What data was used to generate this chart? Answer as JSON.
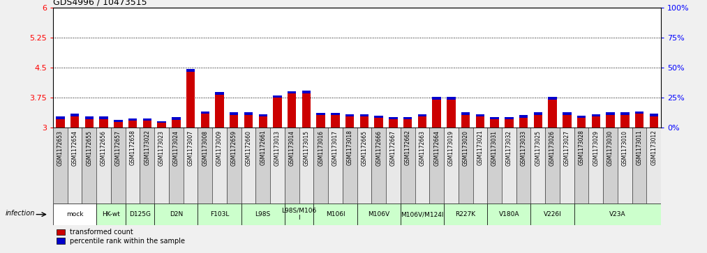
{
  "title": "GDS4996 / 10473515",
  "samples": [
    "GSM1172653",
    "GSM1172654",
    "GSM1172655",
    "GSM1172656",
    "GSM1172657",
    "GSM1172658",
    "GSM1173022",
    "GSM1173023",
    "GSM1173024",
    "GSM1173007",
    "GSM1173008",
    "GSM1173009",
    "GSM1172659",
    "GSM1172660",
    "GSM1172661",
    "GSM1173013",
    "GSM1173014",
    "GSM1173015",
    "GSM1173016",
    "GSM1173017",
    "GSM1173018",
    "GSM1172665",
    "GSM1172666",
    "GSM1172667",
    "GSM1172662",
    "GSM1172663",
    "GSM1172664",
    "GSM1173019",
    "GSM1173020",
    "GSM1173021",
    "GSM1173031",
    "GSM1173032",
    "GSM1173033",
    "GSM1173025",
    "GSM1173026",
    "GSM1173027",
    "GSM1173028",
    "GSM1173029",
    "GSM1173030",
    "GSM1173010",
    "GSM1173011",
    "GSM1173012"
  ],
  "red_values": [
    3.22,
    3.28,
    3.22,
    3.22,
    3.15,
    3.18,
    3.18,
    3.13,
    3.2,
    4.4,
    3.35,
    3.82,
    3.32,
    3.32,
    3.28,
    3.75,
    3.85,
    3.85,
    3.32,
    3.32,
    3.28,
    3.28,
    3.25,
    3.22,
    3.22,
    3.28,
    3.7,
    3.7,
    3.32,
    3.28,
    3.22,
    3.22,
    3.25,
    3.32,
    3.7,
    3.32,
    3.25,
    3.28,
    3.32,
    3.32,
    3.35,
    3.28
  ],
  "blue_values": [
    0.07,
    0.07,
    0.06,
    0.06,
    0.05,
    0.05,
    0.05,
    0.04,
    0.06,
    0.06,
    0.06,
    0.07,
    0.06,
    0.06,
    0.06,
    0.06,
    0.06,
    0.07,
    0.05,
    0.05,
    0.06,
    0.06,
    0.05,
    0.05,
    0.05,
    0.06,
    0.07,
    0.07,
    0.06,
    0.05,
    0.05,
    0.05,
    0.06,
    0.07,
    0.07,
    0.06,
    0.05,
    0.05,
    0.06,
    0.06,
    0.06,
    0.07
  ],
  "groups": [
    {
      "label": "mock",
      "start": 0,
      "end": 2,
      "color": "#ffffff"
    },
    {
      "label": "HK-wt",
      "start": 3,
      "end": 4,
      "color": "#ccffcc"
    },
    {
      "label": "D125G",
      "start": 5,
      "end": 6,
      "color": "#ccffcc"
    },
    {
      "label": "D2N",
      "start": 7,
      "end": 9,
      "color": "#ccffcc"
    },
    {
      "label": "F103L",
      "start": 10,
      "end": 12,
      "color": "#ccffcc"
    },
    {
      "label": "L98S",
      "start": 13,
      "end": 15,
      "color": "#ccffcc"
    },
    {
      "label": "L98S/M106\nI",
      "start": 16,
      "end": 17,
      "color": "#ccffcc"
    },
    {
      "label": "M106I",
      "start": 18,
      "end": 20,
      "color": "#ccffcc"
    },
    {
      "label": "M106V",
      "start": 21,
      "end": 23,
      "color": "#ccffcc"
    },
    {
      "label": "M106V/M124I",
      "start": 24,
      "end": 26,
      "color": "#ccffcc"
    },
    {
      "label": "R227K",
      "start": 27,
      "end": 29,
      "color": "#ccffcc"
    },
    {
      "label": "V180A",
      "start": 30,
      "end": 32,
      "color": "#ccffcc"
    },
    {
      "label": "V226I",
      "start": 33,
      "end": 35,
      "color": "#ccffcc"
    },
    {
      "label": "V23A",
      "start": 36,
      "end": 41,
      "color": "#ccffcc"
    }
  ],
  "ylim_left": [
    3.0,
    6.0
  ],
  "ylim_right": [
    0,
    100
  ],
  "yticks_left": [
    3.0,
    3.75,
    4.5,
    5.25,
    6.0
  ],
  "yticks_right": [
    0,
    25,
    50,
    75,
    100
  ],
  "ytick_labels_left": [
    "3",
    "3.75",
    "4.5",
    "5.25",
    "6"
  ],
  "ytick_labels_right": [
    "0%",
    "25%",
    "50%",
    "75%",
    "100%"
  ],
  "red_color": "#cc0000",
  "blue_color": "#0000cc",
  "bar_width": 0.6,
  "base_value": 3.0,
  "fig_bg": "#f0f0f0",
  "plot_bg": "#ffffff",
  "infection_label": "infection",
  "legend_items": [
    "transformed count",
    "percentile rank within the sample"
  ]
}
